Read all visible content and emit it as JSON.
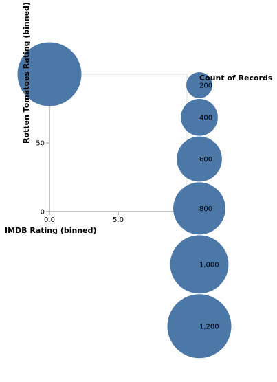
{
  "chart_data": {
    "type": "scatter",
    "title": "",
    "xlabel": "IMDB Rating (binned)",
    "ylabel": "Rotten Tomatoes Rating (binned)",
    "xlim": [
      0,
      10
    ],
    "ylim": [
      0,
      100
    ],
    "x_ticks": [
      "0.0",
      "5.0"
    ],
    "y_ticks": [
      "0",
      "50"
    ],
    "grid": false,
    "size_field": "Count of Records",
    "points": [
      {
        "x": 0,
        "y": 100,
        "count": 1200
      }
    ],
    "legend": {
      "title": "Count of Records",
      "placement": "right",
      "entries": [
        {
          "label": "200",
          "value": 200
        },
        {
          "label": "400",
          "value": 400
        },
        {
          "label": "600",
          "value": 600
        },
        {
          "label": "800",
          "value": 800
        },
        {
          "label": "1,000",
          "value": 1000
        },
        {
          "label": "1,200",
          "value": 1200
        }
      ]
    },
    "colors": {
      "mark": "#4c78a8",
      "axis": "#888888",
      "frame": "#dddddd"
    }
  }
}
